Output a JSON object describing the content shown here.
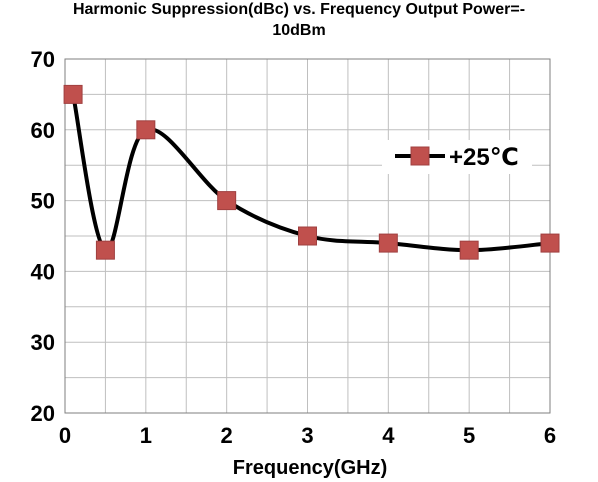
{
  "chart_data": {
    "type": "line",
    "title_line1": "Harmonic Suppression(dBc)  vs. Frequency Output Power=-",
    "title_line2": "10dBm",
    "xlabel": "Frequency(GHz)",
    "ylabel": "",
    "xlim": [
      0,
      6
    ],
    "ylim": [
      20,
      70
    ],
    "xticks": [
      "0",
      "1",
      "2",
      "3",
      "4",
      "5",
      "6"
    ],
    "yticks": [
      "20",
      "30",
      "40",
      "50",
      "60",
      "70"
    ],
    "grid": true,
    "legend_position": "right",
    "series": [
      {
        "name": "+25℃",
        "color": "#c0504d",
        "line_color": "#000000",
        "x": [
          0.1,
          0.5,
          1,
          2,
          3,
          4,
          5,
          6
        ],
        "y": [
          65,
          43,
          60,
          50,
          45,
          44,
          43,
          44
        ]
      }
    ]
  }
}
